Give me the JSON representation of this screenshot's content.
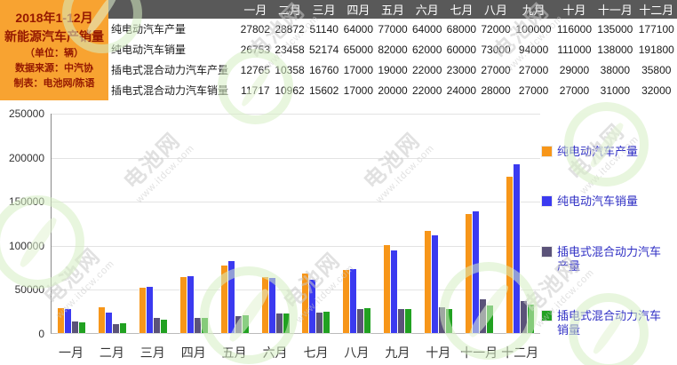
{
  "info_box": {
    "lines": [
      "2018年1-12月",
      "新能源汽车产销量",
      "（单位：辆）",
      "数据来源：中汽协",
      "制表：电池网/陈语"
    ],
    "bg_color": "#F8A331",
    "text_color": "#951800"
  },
  "table": {
    "months": [
      "一月",
      "二月",
      "三月",
      "四月",
      "五月",
      "六月",
      "七月",
      "八月",
      "九月",
      "十月",
      "十一月",
      "十二月"
    ],
    "rows": [
      {
        "label": "纯电动汽车产量",
        "values": [
          27802,
          28872,
          51140,
          64000,
          77000,
          64000,
          68000,
          72000,
          100000,
          116000,
          135000,
          177100
        ]
      },
      {
        "label": "纯电动汽车销量",
        "values": [
          26753,
          23458,
          52174,
          65000,
          82000,
          62000,
          60000,
          73000,
          94000,
          111000,
          138000,
          191800
        ]
      },
      {
        "label": "插电式混合动力汽车产量",
        "values": [
          12765,
          10358,
          16760,
          17000,
          19000,
          22000,
          23000,
          27000,
          27000,
          29000,
          38000,
          35800
        ]
      },
      {
        "label": "插电式混合动力汽车销量",
        "values": [
          11717,
          10962,
          15602,
          17000,
          20000,
          22000,
          24000,
          28000,
          27000,
          27000,
          31000,
          32000
        ]
      }
    ],
    "header_bg": "#595959",
    "header_text_color": "#ffffff"
  },
  "chart_data": {
    "type": "bar",
    "title": "2018年1-12月新能源汽车产销量（单位：辆）",
    "categories": [
      "一月",
      "二月",
      "三月",
      "四月",
      "五月",
      "六月",
      "七月",
      "八月",
      "九月",
      "十月",
      "十一月",
      "十二月"
    ],
    "series": [
      {
        "name": "纯电动汽车产量",
        "color": "#F79619",
        "values": [
          27802,
          28872,
          51140,
          64000,
          77000,
          64000,
          68000,
          72000,
          100000,
          116000,
          135000,
          177100
        ]
      },
      {
        "name": "纯电动汽车销量",
        "color": "#3B3AF0",
        "values": [
          26753,
          23458,
          52174,
          65000,
          82000,
          62000,
          60000,
          73000,
          94000,
          111000,
          138000,
          191800
        ]
      },
      {
        "name": "插电式混合动力汽车产量",
        "color": "#5B5379",
        "values": [
          12765,
          10358,
          16760,
          17000,
          19000,
          22000,
          23000,
          27000,
          27000,
          29000,
          38000,
          35800
        ]
      },
      {
        "name": "插电式混合动力汽车销量",
        "color": "#21A121",
        "values": [
          11717,
          10962,
          15602,
          17000,
          20000,
          22000,
          24000,
          28000,
          27000,
          27000,
          31000,
          32000
        ]
      }
    ],
    "xlabel": "",
    "ylabel": "",
    "ylim": [
      0,
      250000
    ],
    "ytick_interval": 50000,
    "yticks": [
      "0",
      "50000",
      "100000",
      "150000",
      "200000",
      "250000"
    ],
    "grid": true,
    "legend_position": "right",
    "legend_text_color": "#2f2fc4"
  },
  "watermark": {
    "logo_text": "电池网",
    "url_text": "www.itdcw.com"
  }
}
